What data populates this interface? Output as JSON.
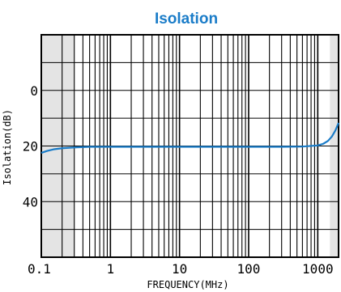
{
  "chart_data": {
    "type": "line",
    "title": "Isolation",
    "xlabel": "FREQUENCY(MHz)",
    "ylabel": "Isolation(dB)",
    "x_scale": "log",
    "xlim": [
      0.1,
      2000
    ],
    "ylim": [
      60,
      -20
    ],
    "grid": true,
    "x_ticks": [
      {
        "value": 0.1,
        "label": "0.1"
      },
      {
        "value": 1,
        "label": "1"
      },
      {
        "value": 10,
        "label": "10"
      },
      {
        "value": 100,
        "label": "100"
      },
      {
        "value": 1000,
        "label": "1000"
      }
    ],
    "y_ticks": [
      {
        "value": 0,
        "label": "0"
      },
      {
        "value": 20,
        "label": "20"
      },
      {
        "value": 40,
        "label": "40"
      }
    ],
    "shaded_regions": [
      [
        0.1,
        0.3
      ],
      [
        1500,
        2000
      ]
    ],
    "series": [
      {
        "color": "#1a7cc8",
        "x": [
          0.1,
          0.12,
          0.15,
          0.2,
          0.3,
          0.5,
          1,
          3,
          10,
          30,
          100,
          300,
          600,
          1000,
          1200,
          1400,
          1600,
          1800,
          2000
        ],
        "y": [
          22.5,
          21.8,
          21.2,
          20.8,
          20.5,
          20.3,
          20.3,
          20.3,
          20.3,
          20.3,
          20.3,
          20.3,
          20.2,
          19.8,
          19.2,
          18.2,
          16.6,
          14.4,
          11.7
        ]
      }
    ]
  }
}
